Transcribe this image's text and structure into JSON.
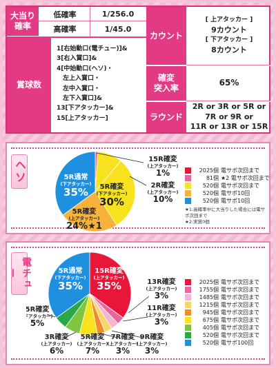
{
  "spec": {
    "jackpot_label": "大当り\n確率",
    "low_label": "低確率",
    "low_value": "1/256.0",
    "high_label": "高確率",
    "high_value": "1/45.0",
    "prize_label": "賞球数",
    "prize_lines": [
      "1[右始動口(電チュー)]&",
      "3[右入賞口]&",
      "4[中始動口(ヘソ)・",
      "　左上入賞口・",
      "　左中入賞口・",
      "　左下入賞口]&",
      "13[下アタッカー]&",
      "15[上アタッカー]"
    ],
    "count_label": "カウント",
    "count_lines": [
      "[ 上アタッカー ]",
      "9カウント",
      "[ 下アタッカー ]",
      "8カウント"
    ],
    "kakuhen_label": "確変\n突入率",
    "kakuhen_value": "65%",
    "round_label": "ラウンド",
    "round_lines": [
      "2R or 3R or 5R or",
      "7R or 9R or",
      "11R or 13R or 15R"
    ]
  },
  "heso": {
    "tag": "ヘソ",
    "slices": [
      {
        "name": "15R確変",
        "sub": "(上アタッカー)",
        "pct": "1%",
        "value": 1,
        "color": "#e8669e"
      },
      {
        "name": "2R確変",
        "sub": "(上アタッカー)",
        "pct": "10%",
        "value": 10,
        "color": "#f7e21d"
      },
      {
        "name": "5R確変",
        "sub": "(下アタッカー)",
        "pct": "30%",
        "value": 30,
        "color": "#f7e21d"
      },
      {
        "name": "5R確変",
        "sub": "(上アタッカー)",
        "pct": "24%★1",
        "value": 24,
        "color": "#f7b23b"
      },
      {
        "name": "5R通常",
        "sub": "(下アタッカー)",
        "pct": "35%",
        "value": 35,
        "color": "#1f8fe0"
      }
    ],
    "legend": [
      {
        "count": "2025個",
        "desc": "電サポ次回まで",
        "color": "#e8173a"
      },
      {
        "count": "81個",
        "desc": "★2 電サポ次回まで",
        "color": "#e8669e"
      },
      {
        "count": "520個",
        "desc": "電サポ次回まで",
        "color": "#f7e21d"
      },
      {
        "count": "520個",
        "desc": "電サポ10回",
        "color": "#f7b23b"
      },
      {
        "count": "520個",
        "desc": "電サポ10回",
        "color": "#1f8fe0"
      }
    ],
    "notes": [
      "★1:高確率中に大当りした場合には電サポ次回まで",
      "★2:実質0個"
    ]
  },
  "denchu": {
    "tag": "電チュー",
    "slices": [
      {
        "name": "15R確変",
        "sub": "(上アタッカー)",
        "pct": "35%",
        "value": 35,
        "color": "#e8173a"
      },
      {
        "name": "13R確変",
        "sub": "(上アタッカー)",
        "pct": "3%",
        "value": 3,
        "color": "#e8669e"
      },
      {
        "name": "11R確変",
        "sub": "(上アタッカー)",
        "pct": "3%",
        "value": 3,
        "color": "#f7b6cf"
      },
      {
        "name": "9R確変",
        "sub": "(上アタッカー)",
        "pct": "3%",
        "value": 3,
        "color": "#f8d56a"
      },
      {
        "name": "7R確変",
        "sub": "(上アタッカー)",
        "pct": "3%",
        "value": 3,
        "color": "#f28c28"
      },
      {
        "name": "5R確変",
        "sub": "(上アタッカー)",
        "pct": "7%",
        "value": 7,
        "color": "#f7e21d"
      },
      {
        "name": "3R確変",
        "sub": "(上アタッカー)",
        "pct": "6%",
        "value": 6,
        "color": "#7ec63f"
      },
      {
        "name": "5R確変",
        "sub": "(下アタッカー)",
        "pct": "5%",
        "value": 5,
        "color": "#29a84a"
      },
      {
        "name": "5R通常",
        "sub": "(下アタッカー)",
        "pct": "35%",
        "value": 35,
        "color": "#1f8fe0"
      }
    ],
    "legend": [
      {
        "count": "2025個",
        "desc": "電サポ次回まで",
        "color": "#e8173a"
      },
      {
        "count": "1755個",
        "desc": "電サポ次回まで",
        "color": "#e8669e"
      },
      {
        "count": "1485個",
        "desc": "電サポ次回まで",
        "color": "#f7b6cf"
      },
      {
        "count": "1215個",
        "desc": "電サポ次回まで",
        "color": "#f8d56a"
      },
      {
        "count": "945個",
        "desc": "電サポ次回まで",
        "color": "#f28c28"
      },
      {
        "count": "675個",
        "desc": "電サポ次回まで",
        "color": "#f7e21d"
      },
      {
        "count": "405個",
        "desc": "電サポ次回まで",
        "color": "#7ec63f"
      },
      {
        "count": "520個",
        "desc": "電サポ次回まで",
        "color": "#29a84a"
      },
      {
        "count": "520個",
        "desc": "電サポ100回",
        "color": "#1f8fe0"
      }
    ]
  }
}
